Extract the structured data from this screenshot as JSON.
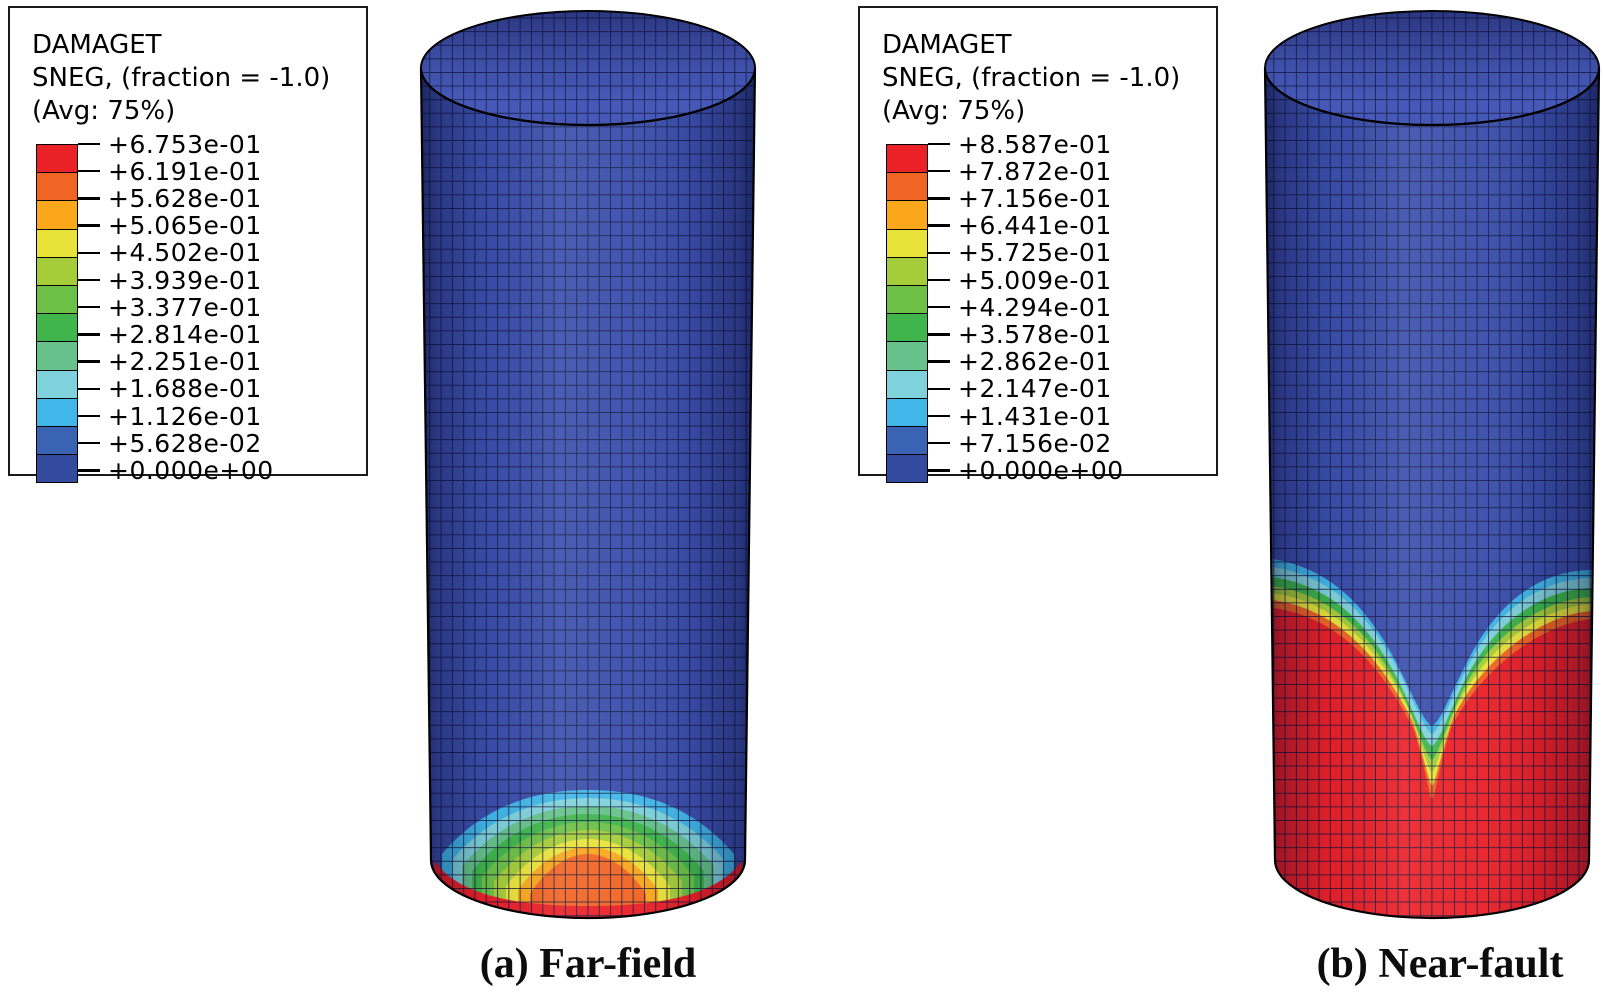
{
  "figure_background": "#ffffff",
  "palette": {
    "bands": [
      "#EB2128",
      "#F16524",
      "#FAA71C",
      "#E9E339",
      "#A5CD39",
      "#6CC046",
      "#3FB54B",
      "#66C28A",
      "#7FD2DB",
      "#41B7E9",
      "#3A63B3",
      "#344A9F"
    ],
    "body_blue": "#3B4FAC",
    "inner_blue": "#4659B8",
    "mesh_line": "#12163B",
    "outline": "#000000"
  },
  "legends": [
    {
      "title_lines": [
        "DAMAGET",
        "SNEG, (fraction = -1.0)",
        "(Avg: 75%)"
      ],
      "tick_labels": [
        "+6.753e-01",
        "+6.191e-01",
        "+5.628e-01",
        "+5.065e-01",
        "+4.502e-01",
        "+3.939e-01",
        "+3.377e-01",
        "+2.814e-01",
        "+2.251e-01",
        "+1.688e-01",
        "+1.126e-01",
        "+5.628e-02",
        "+0.000e+00"
      ]
    },
    {
      "title_lines": [
        "DAMAGET",
        "SNEG, (fraction = -1.0)",
        "(Avg: 75%)"
      ],
      "tick_labels": [
        "+8.587e-01",
        "+7.872e-01",
        "+7.156e-01",
        "+6.441e-01",
        "+5.725e-01",
        "+5.009e-01",
        "+4.294e-01",
        "+3.578e-01",
        "+2.862e-01",
        "+2.147e-01",
        "+1.431e-01",
        "+7.156e-02",
        "+0.000e+00"
      ]
    }
  ],
  "captions": {
    "a": "(a) Far-field",
    "b": "(b) Near-fault"
  },
  "chart_data": [
    {
      "type": "heatmap",
      "subfigure": "(a) Far-field",
      "variable": "DAMAGET",
      "surface": "SNEG, (fraction = -1.0)",
      "averaging": "(Avg: 75%)",
      "range": [
        0.0,
        0.6753
      ],
      "scale_ticks": [
        0.6753,
        0.6191,
        0.5628,
        0.5065,
        0.4502,
        0.3939,
        0.3377,
        0.2814,
        0.2251,
        0.1688,
        0.1126,
        0.05628,
        0.0
      ],
      "band_colors_top_to_bottom": [
        "#EB2128",
        "#F16524",
        "#FAA71C",
        "#E9E339",
        "#A5CD39",
        "#6CC046",
        "#3FB54B",
        "#66C28A",
        "#7FD2DB",
        "#41B7E9",
        "#3A63B3",
        "#344A9F"
      ],
      "legend_position": "top-left",
      "geometry": "3D meshed cylindrical shell, open top, viewed slightly from above",
      "distribution": "Tensile damage confined to a dome-shaped zone at the base: red maximum ring along the bottom edge, orange core at bottom center, concentric yellow-green-cyan bands fading to undamaged dark blue above roughly 15% of shell height."
    },
    {
      "type": "heatmap",
      "subfigure": "(b) Near-fault",
      "variable": "DAMAGET",
      "surface": "SNEG, (fraction = -1.0)",
      "averaging": "(Avg: 75%)",
      "range": [
        0.0,
        0.8587
      ],
      "scale_ticks": [
        0.8587,
        0.7872,
        0.7156,
        0.6441,
        0.5725,
        0.5009,
        0.4294,
        0.3578,
        0.2862,
        0.2147,
        0.1431,
        0.07156,
        0.0
      ],
      "band_colors_top_to_bottom": [
        "#EB2128",
        "#F16524",
        "#FAA71C",
        "#E9E339",
        "#A5CD39",
        "#6CC046",
        "#3FB54B",
        "#66C28A",
        "#7FD2DB",
        "#41B7E9",
        "#3A63B3",
        "#344A9F"
      ],
      "legend_position": "top-left",
      "geometry": "3D meshed cylindrical shell, open top, viewed slightly from above",
      "distribution": "Severe red damage over the lower ~35-40% of the shell, rising higher on the left and right flanks; an undamaged blue valley dips down at mid-width with narrow cyan-green-yellow-orange transition bands; the entire base ring is at the red maximum."
    }
  ]
}
